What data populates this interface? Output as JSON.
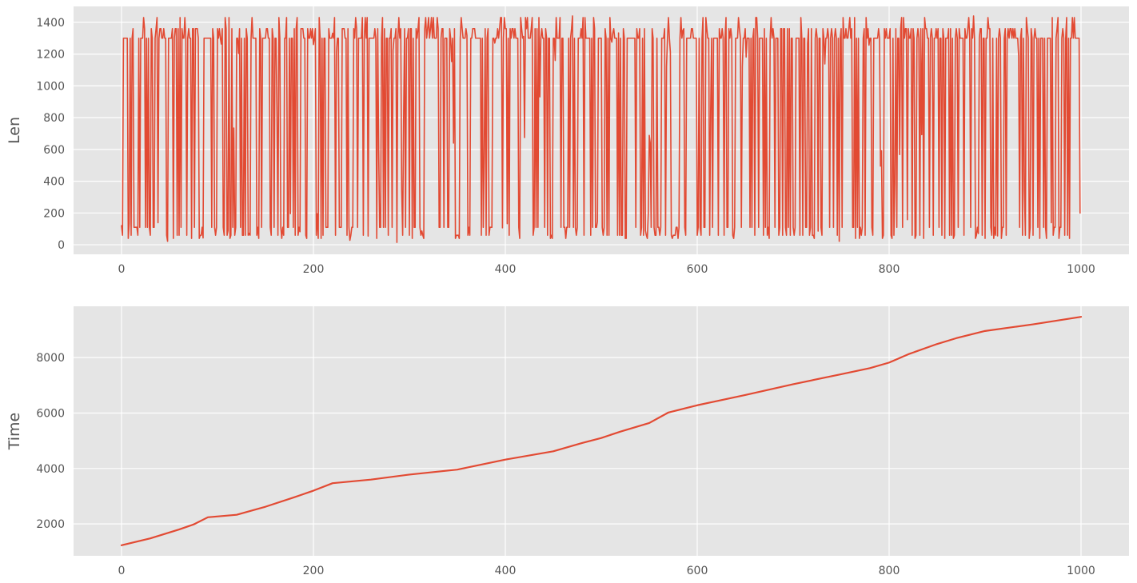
{
  "style": {
    "plot_background": "#e5e5e5",
    "grid_color": "#ffffff",
    "tick_label_color": "#555555",
    "line_color": "#e24a33"
  },
  "chart_data": [
    {
      "type": "line",
      "ylabel": "Len",
      "xlabel": "",
      "title": "",
      "grid": true,
      "xlim": [
        -50,
        1050
      ],
      "ylim": [
        -60,
        1500
      ],
      "xticks": [
        0,
        200,
        400,
        600,
        800,
        1000
      ],
      "yticks": [
        0,
        200,
        400,
        600,
        800,
        1000,
        1200,
        1400
      ],
      "series": [
        {
          "color": "#e24a33",
          "n_points": 1000,
          "x_range": [
            0,
            999
          ],
          "value_levels": [
            1300,
            1360,
            1430,
            110,
            60,
            40
          ],
          "max_value": 1440,
          "min_value": 0,
          "note": "rapidly alternating between ~1300-1360 and ~40-110, with some intermediate values"
        }
      ]
    },
    {
      "type": "line",
      "ylabel": "Time",
      "xlabel": "",
      "title": "",
      "grid": true,
      "xlim": [
        -50,
        1050
      ],
      "ylim": [
        850,
        9850
      ],
      "xticks": [
        0,
        200,
        400,
        600,
        800,
        1000
      ],
      "yticks": [
        2000,
        4000,
        6000,
        8000
      ],
      "series": [
        {
          "color": "#e24a33",
          "x": [
            0,
            30,
            60,
            75,
            90,
            120,
            150,
            180,
            200,
            220,
            260,
            300,
            350,
            400,
            450,
            480,
            500,
            520,
            550,
            570,
            600,
            650,
            700,
            750,
            780,
            800,
            820,
            850,
            870,
            900,
            950,
            1000
          ],
          "y": [
            1230,
            1480,
            1800,
            1980,
            2240,
            2330,
            2620,
            2960,
            3200,
            3470,
            3600,
            3780,
            3960,
            4320,
            4620,
            4920,
            5100,
            5330,
            5640,
            6020,
            6280,
            6650,
            7040,
            7400,
            7620,
            7820,
            8120,
            8490,
            8700,
            8960,
            9200,
            9470
          ]
        }
      ]
    }
  ]
}
